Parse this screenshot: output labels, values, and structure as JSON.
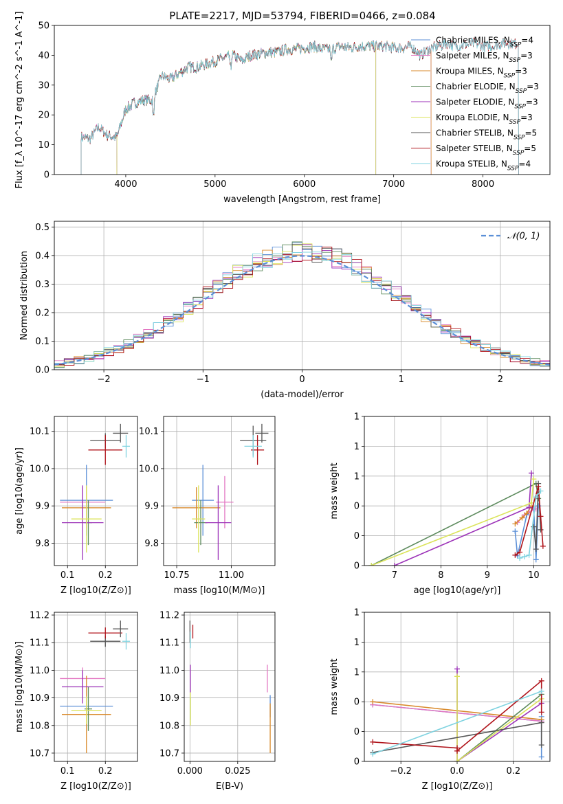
{
  "colors": {
    "Chabrier MILES": "#5b8fd7",
    "Salpeter MILES": "#e377c2",
    "Kroupa MILES": "#d98a2b",
    "Chabrier ELODIE": "#5c8a5c",
    "Salpeter ELODIE": "#9c32b8",
    "Kroupa ELODIE": "#dbe35a",
    "Chabrier STELIB": "#555555",
    "Salpeter STELIB": "#b0141b",
    "Kroupa STELIB": "#7fd3e0",
    "normal": "#5b8fd7",
    "grid": "#b0b0b0"
  },
  "chart_data": [
    {
      "id": "spectrum",
      "type": "line",
      "title": "PLATE=2217, MJD=53794, FIBERID=0466, z=0.084",
      "xlabel": "wavelength [Angstrom, rest frame]",
      "ylabel": "Flux [f_λ 10^-17 erg cm^-2 s^-1 A^-1]",
      "xlim": [
        3200,
        8750
      ],
      "ylim": [
        0,
        50
      ],
      "xticks": [
        4000,
        5000,
        6000,
        7000,
        8000
      ],
      "yticks": [
        0,
        10,
        20,
        30,
        40,
        50
      ],
      "grid": false,
      "legend_position": "right",
      "legend": [
        {
          "model": "Chabrier MILES",
          "n": "4"
        },
        {
          "model": "Salpeter MILES",
          "n": "3"
        },
        {
          "model": "Kroupa MILES",
          "n": "3"
        },
        {
          "model": "Chabrier ELODIE",
          "n": "3"
        },
        {
          "model": "Salpeter ELODIE",
          "n": "3"
        },
        {
          "model": "Kroupa ELODIE",
          "n": "3"
        },
        {
          "model": "Chabrier STELIB",
          "n": "5"
        },
        {
          "model": "Salpeter STELIB",
          "n": "5"
        },
        {
          "model": "Kroupa STELIB",
          "n": "4"
        }
      ],
      "model_ranges": [
        {
          "model": "Chabrier MILES",
          "x": [
            3500,
            7420
          ]
        },
        {
          "model": "Salpeter MILES",
          "x": [
            3500,
            7420
          ]
        },
        {
          "model": "Kroupa MILES",
          "x": [
            3500,
            7420
          ]
        },
        {
          "model": "Chabrier ELODIE",
          "x": [
            3900,
            6800
          ]
        },
        {
          "model": "Salpeter ELODIE",
          "x": [
            3900,
            6800
          ]
        },
        {
          "model": "Kroupa ELODIE",
          "x": [
            3900,
            6800
          ]
        },
        {
          "model": "Chabrier STELIB",
          "x": [
            3500,
            8400
          ]
        },
        {
          "model": "Salpeter STELIB",
          "x": [
            3500,
            8400
          ]
        },
        {
          "model": "Kroupa STELIB",
          "x": [
            3500,
            8400
          ]
        }
      ],
      "spectrum_x": [
        3500,
        3600,
        3700,
        3800,
        3900,
        4000,
        4100,
        4200,
        4300,
        4400,
        4500,
        4600,
        4700,
        4800,
        4900,
        5000,
        5100,
        5200,
        5300,
        5400,
        5500,
        5600,
        5700,
        5800,
        5900,
        6000,
        6100,
        6200,
        6300,
        6400,
        6500,
        6600,
        6700,
        6800,
        6900,
        7000,
        7100,
        7200,
        7300,
        7400,
        7500,
        7600,
        7700,
        7800,
        7900,
        8000,
        8100,
        8200,
        8300,
        8400
      ],
      "spectrum_y": [
        12.5,
        12,
        16,
        13,
        12.5,
        22,
        24,
        25,
        25,
        33,
        32,
        34,
        36,
        36,
        37,
        38,
        39,
        40,
        38,
        40,
        40.5,
        41,
        41,
        42,
        42,
        42.5,
        43,
        42,
        42,
        43,
        42.5,
        43,
        43,
        43,
        43,
        42.5,
        42.5,
        43,
        40,
        42,
        43,
        44,
        43,
        43.5,
        44,
        43,
        43,
        44,
        44,
        44
      ]
    },
    {
      "id": "residuals",
      "type": "line",
      "xlabel": "(data-model)/error",
      "ylabel": "Normed distribution",
      "xlim": [
        -2.5,
        2.5
      ],
      "ylim": [
        0,
        0.52
      ],
      "xticks": [
        -2,
        -1,
        0,
        1,
        2
      ],
      "yticks": [
        0.0,
        0.1,
        0.2,
        0.3,
        0.4,
        0.5
      ],
      "grid": true,
      "legend_position": "top-right",
      "legend": [
        "𝒩(0, 1)"
      ],
      "normal_curve": {
        "mean": 0,
        "std": 1
      }
    },
    {
      "id": "age_vs_Z",
      "type": "scatter",
      "xlabel": "Z [log10(Z/Z⊙)]",
      "ylabel": "age [log10(age/yr)]",
      "xlim": [
        0.065,
        0.285
      ],
      "ylim": [
        9.74,
        10.14
      ],
      "xticks": [
        0.1,
        0.2
      ],
      "yticks": [
        9.8,
        9.9,
        10.0,
        10.1
      ],
      "grid": true,
      "points": [
        {
          "model": "Chabrier MILES",
          "x": 0.15,
          "y": 9.915,
          "xerr": 0.07,
          "yerr": 0.095
        },
        {
          "model": "Salpeter MILES",
          "x": 0.14,
          "y": 9.91,
          "xerr": 0.06,
          "yerr": 0.04
        },
        {
          "model": "Kroupa MILES",
          "x": 0.15,
          "y": 9.895,
          "xerr": 0.065,
          "yerr": 0.055
        },
        {
          "model": "Chabrier ELODIE",
          "x": 0.155,
          "y": 9.855,
          "xerr": 0.01,
          "yerr": 0.06
        },
        {
          "model": "Salpeter ELODIE",
          "x": 0.14,
          "y": 9.855,
          "xerr": 0.055,
          "yerr": 0.1
        },
        {
          "model": "Kroupa ELODIE",
          "x": 0.15,
          "y": 9.865,
          "xerr": 0.04,
          "yerr": 0.09
        },
        {
          "model": "Chabrier STELIB",
          "x": 0.2,
          "y": 10.075,
          "xerr": 0.04,
          "yerr": 0.02
        },
        {
          "model": "Salpeter STELIB",
          "x": 0.2,
          "y": 10.05,
          "xerr": 0.045,
          "yerr": 0.04
        },
        {
          "model": "Kroupa STELIB",
          "x": 0.255,
          "y": 10.06,
          "xerr": 0.01,
          "yerr": 0.03
        },
        {
          "model": "Chabrier STELIB",
          "x": 0.24,
          "y": 10.095,
          "xerr": 0.02,
          "yerr": 0.025
        }
      ]
    },
    {
      "id": "age_vs_mass",
      "type": "scatter",
      "xlabel": "mass [log10(M/M⊙)]",
      "ylabel": "",
      "xlim": [
        10.69,
        11.2
      ],
      "ylim": [
        9.74,
        10.14
      ],
      "xticks": [
        10.75,
        11.0
      ],
      "xtick_labels": [
        "10.75",
        "11.00"
      ],
      "yticks": [
        9.8,
        9.9,
        10.0,
        10.1
      ],
      "grid": true,
      "points": [
        {
          "model": "Chabrier MILES",
          "x": 10.87,
          "y": 9.915,
          "xerr": 0.05,
          "yerr": 0.095
        },
        {
          "model": "Salpeter MILES",
          "x": 10.97,
          "y": 9.91,
          "xerr": 0.04,
          "yerr": 0.07
        },
        {
          "model": "Kroupa MILES",
          "x": 10.84,
          "y": 9.895,
          "xerr": 0.11,
          "yerr": 0.055
        },
        {
          "model": "Chabrier ELODIE",
          "x": 10.86,
          "y": 9.855,
          "xerr": 0.03,
          "yerr": 0.06
        },
        {
          "model": "Salpeter ELODIE",
          "x": 10.94,
          "y": 9.855,
          "xerr": 0.06,
          "yerr": 0.1
        },
        {
          "model": "Kroupa ELODIE",
          "x": 10.85,
          "y": 9.865,
          "xerr": 0.03,
          "yerr": 0.09
        },
        {
          "model": "Chabrier STELIB",
          "x": 11.1,
          "y": 10.075,
          "xerr": 0.06,
          "yerr": 0.04
        },
        {
          "model": "Salpeter STELIB",
          "x": 11.12,
          "y": 10.05,
          "xerr": 0.03,
          "yerr": 0.04
        },
        {
          "model": "Kroupa STELIB",
          "x": 11.1,
          "y": 10.06,
          "xerr": 0.04,
          "yerr": 0.03
        },
        {
          "model": "Chabrier STELIB",
          "x": 11.14,
          "y": 10.095,
          "xerr": 0.03,
          "yerr": 0.025
        }
      ]
    },
    {
      "id": "weight_vs_age",
      "type": "line",
      "xlabel": "age [log10(age/yr)]",
      "ylabel": "mass weight",
      "xlim": [
        6.35,
        10.35
      ],
      "ylim": [
        0,
        1.0
      ],
      "xticks": [
        7,
        8,
        9,
        10
      ],
      "yticks": [
        0.0,
        0.2,
        0.4,
        0.6,
        0.8,
        1.0
      ],
      "grid": true,
      "series": [
        {
          "model": "Chabrier MILES",
          "x": [
            9.6,
            9.65,
            9.85,
            10.0,
            10.05,
            10.1
          ],
          "y": [
            0.23,
            0.065,
            0.34,
            0.38,
            0.04,
            0.4
          ]
        },
        {
          "model": "Salpeter MILES",
          "x": [
            9.65,
            9.8,
            9.9,
            10.05
          ],
          "y": [
            0.29,
            0.34,
            0.36,
            0.38
          ]
        },
        {
          "model": "Kroupa MILES",
          "x": [
            9.6,
            9.75,
            9.85,
            9.95
          ],
          "y": [
            0.28,
            0.32,
            0.35,
            0.4
          ]
        },
        {
          "model": "Chabrier ELODIE",
          "x": [
            6.5,
            10.05,
            10.1
          ],
          "y": [
            0.0,
            0.55,
            0.45
          ]
        },
        {
          "model": "Salpeter ELODIE",
          "x": [
            7.0,
            9.9,
            9.95
          ],
          "y": [
            0.0,
            0.39,
            0.62
          ]
        },
        {
          "model": "Kroupa ELODIE",
          "x": [
            6.5,
            9.95,
            10.0
          ],
          "y": [
            0.0,
            0.42,
            0.58
          ]
        },
        {
          "model": "Chabrier STELIB",
          "x": [
            10.0,
            10.05,
            10.1,
            10.15
          ],
          "y": [
            0.26,
            0.11,
            0.55,
            0.24
          ]
        },
        {
          "model": "Salpeter STELIB",
          "x": [
            9.6,
            9.7,
            10.1,
            10.15,
            10.2
          ],
          "y": [
            0.07,
            0.09,
            0.53,
            0.33,
            0.13
          ]
        },
        {
          "model": "Kroupa STELIB",
          "x": [
            9.7,
            9.8,
            9.9,
            10.05,
            10.15
          ],
          "y": [
            0.05,
            0.06,
            0.07,
            0.46,
            0.5
          ]
        }
      ]
    },
    {
      "id": "mass_vs_Z",
      "type": "scatter",
      "xlabel": "Z [log10(Z/Z⊙)]",
      "ylabel": "mass [log10(M/M⊙)]",
      "xlim": [
        0.065,
        0.285
      ],
      "ylim": [
        10.67,
        11.21
      ],
      "xticks": [
        0.1,
        0.2
      ],
      "yticks": [
        10.7,
        10.8,
        10.9,
        11.0,
        11.1,
        11.2
      ],
      "grid": true,
      "points": [
        {
          "model": "Chabrier MILES",
          "x": 0.15,
          "y": 10.87,
          "xerr": 0.07,
          "yerr": 0.0
        },
        {
          "model": "Salpeter MILES",
          "x": 0.14,
          "y": 10.97,
          "xerr": 0.06,
          "yerr": 0.04
        },
        {
          "model": "Kroupa MILES",
          "x": 0.15,
          "y": 10.84,
          "xerr": 0.065,
          "yerr": 0.14
        },
        {
          "model": "Chabrier ELODIE",
          "x": 0.155,
          "y": 10.86,
          "xerr": 0.01,
          "yerr": 0.08
        },
        {
          "model": "Salpeter ELODIE",
          "x": 0.14,
          "y": 10.94,
          "xerr": 0.055,
          "yerr": 0.06
        },
        {
          "model": "Kroupa ELODIE",
          "x": 0.15,
          "y": 10.855,
          "xerr": 0.04,
          "yerr": 0.05
        },
        {
          "model": "Chabrier STELIB",
          "x": 0.2,
          "y": 11.105,
          "xerr": 0.04,
          "yerr": 0.02
        },
        {
          "model": "Salpeter STELIB",
          "x": 0.2,
          "y": 11.135,
          "xerr": 0.045,
          "yerr": 0.02
        },
        {
          "model": "Kroupa STELIB",
          "x": 0.255,
          "y": 11.105,
          "xerr": 0.01,
          "yerr": 0.03
        },
        {
          "model": "Chabrier STELIB",
          "x": 0.24,
          "y": 11.15,
          "xerr": 0.02,
          "yerr": 0.03
        }
      ]
    },
    {
      "id": "mass_vs_EBV",
      "type": "scatter",
      "xlabel": "E(B-V)",
      "ylabel": "",
      "xlim": [
        -0.003,
        0.0445
      ],
      "ylim": [
        10.67,
        11.21
      ],
      "xticks": [
        0.0,
        0.025
      ],
      "xtick_labels": [
        "0.000",
        "0.025"
      ],
      "yticks": [
        10.7,
        10.8,
        10.9,
        11.0,
        11.1,
        11.2
      ],
      "grid": true,
      "points": [
        {
          "model": "Chabrier MILES",
          "x": 0.042,
          "y": 10.87,
          "xerr": 0,
          "yerr": 0.04
        },
        {
          "model": "Salpeter MILES",
          "x": 0.0405,
          "y": 10.97,
          "xerr": 0,
          "yerr": 0.05
        },
        {
          "model": "Kroupa MILES",
          "x": 0.042,
          "y": 10.79,
          "xerr": 0,
          "yerr": 0.09
        },
        {
          "model": "Chabrier ELODIE",
          "x": 0.0002,
          "y": 10.86,
          "xerr": 0,
          "yerr": 0.04
        },
        {
          "model": "Salpeter ELODIE",
          "x": 0.0002,
          "y": 10.97,
          "xerr": 0,
          "yerr": 0.05
        },
        {
          "model": "Kroupa ELODIE",
          "x": 0.0002,
          "y": 10.86,
          "xerr": 0,
          "yerr": 0.06
        },
        {
          "model": "Chabrier STELIB",
          "x": 0.0,
          "y": 11.14,
          "xerr": 0,
          "yerr": 0.04
        },
        {
          "model": "Salpeter STELIB",
          "x": 0.0015,
          "y": 11.14,
          "xerr": 0,
          "yerr": 0.025
        },
        {
          "model": "Kroupa STELIB",
          "x": 0.0002,
          "y": 11.11,
          "xerr": 0,
          "yerr": 0.03
        }
      ]
    },
    {
      "id": "weight_vs_Z",
      "type": "line",
      "xlabel": "Z [log10(Z/Z⊙)]",
      "ylabel": "mass weight",
      "xlim": [
        -0.33,
        0.33
      ],
      "ylim": [
        0,
        1.0
      ],
      "xticks": [
        -0.2,
        0.0,
        0.2
      ],
      "xtick_labels": [
        "−0.2",
        "0.0",
        "0.2"
      ],
      "yticks": [
        0.0,
        0.2,
        0.4,
        0.6,
        0.8,
        1.0
      ],
      "grid": true,
      "series": [
        {
          "model": "Chabrier MILES",
          "x": [
            -0.3,
            0.3,
            0.3,
            0.3
          ],
          "y": [
            0.38,
            0.27,
            0.03,
            0.3
          ]
        },
        {
          "model": "Salpeter MILES",
          "x": [
            -0.3,
            0.3
          ],
          "y": [
            0.38,
            0.27
          ]
        },
        {
          "model": "Kroupa MILES",
          "x": [
            -0.3,
            0.3
          ],
          "y": [
            0.4,
            0.28
          ]
        },
        {
          "model": "Chabrier ELODIE",
          "x": [
            0.0,
            0.3
          ],
          "y": [
            0.0,
            0.45
          ]
        },
        {
          "model": "Salpeter ELODIE",
          "x": [
            0.0,
            0.0,
            0.3
          ],
          "y": [
            0.62,
            0.0,
            0.39
          ]
        },
        {
          "model": "Kroupa ELODIE",
          "x": [
            0.0,
            0.0,
            0.3
          ],
          "y": [
            0.57,
            0.0,
            0.42
          ]
        },
        {
          "model": "Chabrier STELIB",
          "x": [
            -0.3,
            0.3,
            0.3
          ],
          "y": [
            0.06,
            0.26,
            0.11
          ]
        },
        {
          "model": "Salpeter STELIB",
          "x": [
            -0.3,
            0.0,
            0.0,
            0.3,
            0.3
          ],
          "y": [
            0.13,
            0.09,
            0.07,
            0.54,
            0.33
          ]
        },
        {
          "model": "Kroupa STELIB",
          "x": [
            -0.3,
            0.3
          ],
          "y": [
            0.05,
            0.47
          ]
        }
      ]
    }
  ]
}
